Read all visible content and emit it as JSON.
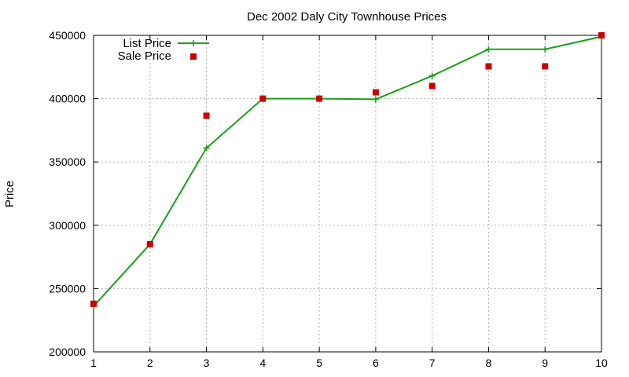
{
  "chart_data": {
    "type": "line",
    "title": "Dec 2002 Daly City Townhouse Prices",
    "xlabel": "",
    "ylabel": "Price",
    "xlim": [
      1,
      10
    ],
    "ylim": [
      200000,
      450000
    ],
    "xticks": [
      1,
      2,
      3,
      4,
      5,
      6,
      7,
      8,
      9,
      10
    ],
    "yticks": [
      200000,
      250000,
      300000,
      350000,
      400000,
      450000
    ],
    "grid": true,
    "legend_position": "top-left",
    "series": [
      {
        "name": "List Price",
        "style": "line-with-plus-markers",
        "color": "#1aa01a",
        "points": [
          {
            "x": 1,
            "y": 236000
          },
          {
            "x": 2,
            "y": 285000
          },
          {
            "x": 3,
            "y": 361000
          },
          {
            "x": 4,
            "y": 400000
          },
          {
            "x": 5,
            "y": 400000
          },
          {
            "x": 6,
            "y": 399500
          },
          {
            "x": 7,
            "y": 418000
          },
          {
            "x": 8,
            "y": 439000
          },
          {
            "x": 9,
            "y": 439000
          },
          {
            "x": 10,
            "y": 449000
          }
        ]
      },
      {
        "name": "Sale Price",
        "style": "square-markers",
        "color": "#cc0000",
        "points": [
          {
            "x": 1,
            "y": 238000
          },
          {
            "x": 2,
            "y": 285000
          },
          {
            "x": 3,
            "y": 386500
          },
          {
            "x": 4,
            "y": 400000
          },
          {
            "x": 5,
            "y": 400000
          },
          {
            "x": 6,
            "y": 405000
          },
          {
            "x": 7,
            "y": 410000
          },
          {
            "x": 8,
            "y": 425500
          },
          {
            "x": 9,
            "y": 425500
          },
          {
            "x": 10,
            "y": 450000
          }
        ]
      }
    ]
  }
}
